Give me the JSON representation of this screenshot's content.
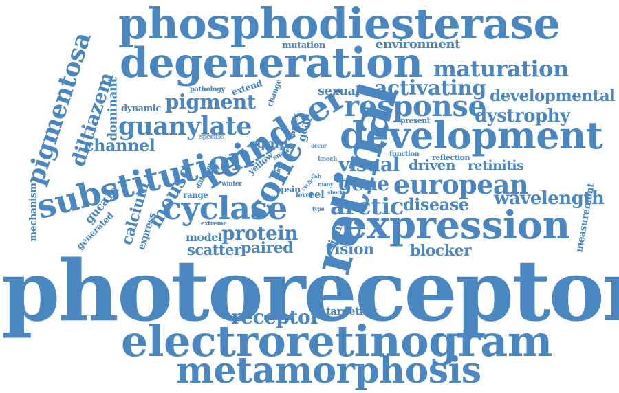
{
  "cloud": {
    "color": "#4a86bf",
    "words": {
      "phosphodiesterase": "phosphodiesterase",
      "degeneration": "degeneration",
      "mutation": "mutation",
      "environment": "environment",
      "maturation": "maturation",
      "pigmentosa": "pigmentosa",
      "diltiazem": "diltiazem",
      "dominant": "dominant",
      "pathology": "pathology",
      "extend": "extend",
      "change": "change",
      "retinal": "retinal",
      "sexual": "sexual",
      "activating": "activating",
      "developmental": "developmental",
      "pigment": "pigment",
      "dynamic": "dynamic",
      "reindeer": "reindeer",
      "response": "response",
      "dystrophy": "dystrophy",
      "guanylate": "guanylate",
      "present": "present",
      "larger": "larger",
      "gcap": "gcap",
      "development": "development",
      "channel": "channel",
      "specific": "specific",
      "cgmp": "cgmp",
      "substitution": "substitution",
      "cone": "cone",
      "yellow": "yellow",
      "snow": "snow",
      "occur": "occur",
      "visual": "visual",
      "function": "function",
      "reflection": "reflection",
      "knock": "knock",
      "driven": "driven",
      "retinitis": "retinitis",
      "different": "different",
      "winter": "winter",
      "retina": "retina",
      "fish": "fish",
      "gene": "gene",
      "european": "european",
      "mechanism": "mechanism",
      "mouse": "mouse",
      "range": "range",
      "glass": "glass",
      "opsin": "opsin",
      "cyclic": "cyclic",
      "many": "many",
      "short": "short",
      "gucala": "guca1a",
      "calcium": "calcium",
      "cyclase": "cyclase",
      "level": "level",
      "eel": "eel",
      "type": "type",
      "arctic": "arctic",
      "disease": "disease",
      "wavelength": "wavelength",
      "generated": "generated",
      "express": "express",
      "extreme": "extreme",
      "expression": "expression",
      "measurement": "measurement",
      "light": "light",
      "protein": "protein",
      "model": "model",
      "scatter": "scatter",
      "paired": "paired",
      "vision": "vision",
      "blocker": "blocker",
      "photoreceptor": "photoreceptor",
      "receptor": "receptor",
      "targeting": "targeting",
      "electroretinogram": "electroretinogram",
      "metamorphosis": "metamorphosis"
    }
  }
}
